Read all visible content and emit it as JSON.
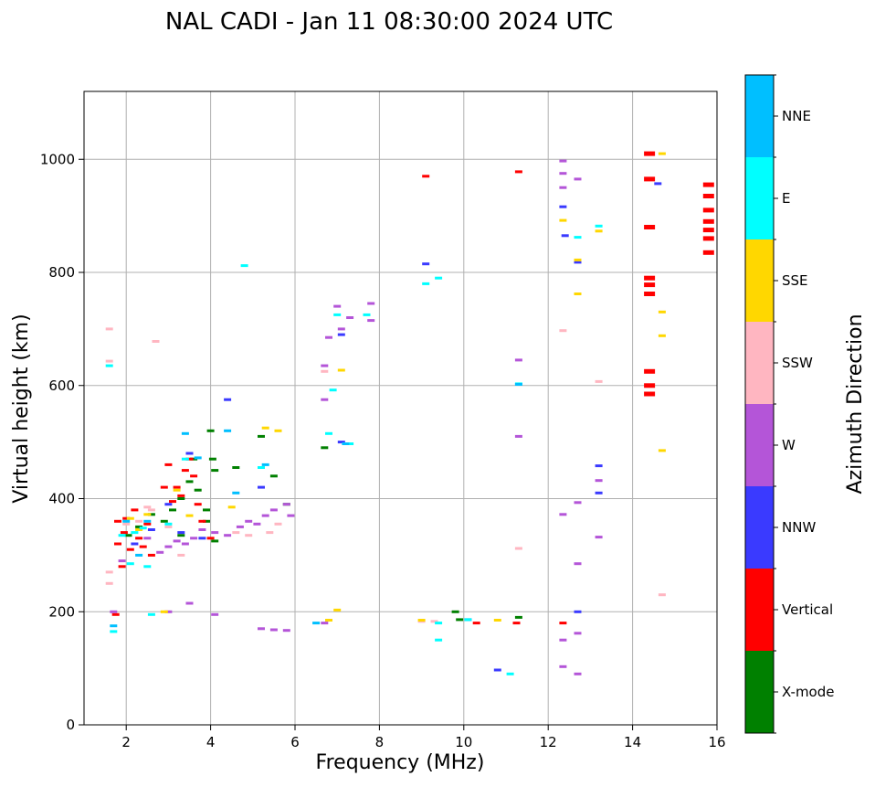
{
  "chart_data": {
    "type": "scatter",
    "title": "NAL CADI - Jan 11 08:30:00 2024 UTC",
    "xlabel": "Frequency (MHz)",
    "ylabel": "Virtual height (km)",
    "xlim": [
      1,
      16
    ],
    "ylim": [
      0,
      1120
    ],
    "xticks": [
      "2",
      "4",
      "6",
      "8",
      "10",
      "12",
      "14",
      "16"
    ],
    "yticks": [
      "0",
      "200",
      "400",
      "600",
      "800",
      "1000"
    ],
    "xtick_values": [
      2,
      4,
      6,
      8,
      10,
      12,
      14,
      16
    ],
    "ytick_values": [
      0,
      200,
      400,
      600,
      800,
      1000
    ],
    "grid": true,
    "colorbar": {
      "label": "Azimuth Direction",
      "categories": [
        {
          "name": "X-mode",
          "color": "#008000"
        },
        {
          "name": "Vertical",
          "color": "#ff0000"
        },
        {
          "name": "NNW",
          "color": "#3a3aff"
        },
        {
          "name": "W",
          "color": "#b455d8"
        },
        {
          "name": "SSW",
          "color": "#ffb6c1"
        },
        {
          "name": "SSE",
          "color": "#ffd700"
        },
        {
          "name": "E",
          "color": "#00ffff"
        },
        {
          "name": "NNE",
          "color": "#00bfff"
        }
      ]
    },
    "series": [
      {
        "name": "X-mode",
        "points": [
          [
            2.05,
            335
          ],
          [
            2.3,
            350
          ],
          [
            2.6,
            372
          ],
          [
            2.9,
            360
          ],
          [
            3.1,
            380
          ],
          [
            3.3,
            400
          ],
          [
            3.5,
            430
          ],
          [
            3.7,
            415
          ],
          [
            3.9,
            360
          ],
          [
            4.0,
            520
          ],
          [
            4.05,
            470
          ],
          [
            4.1,
            450
          ],
          [
            4.1,
            325
          ],
          [
            3.6,
            470
          ],
          [
            4.6,
            455
          ],
          [
            5.2,
            510
          ],
          [
            5.5,
            440
          ],
          [
            5.8,
            390
          ],
          [
            6.7,
            490
          ],
          [
            9.8,
            200
          ],
          [
            9.9,
            186
          ],
          [
            11.3,
            190
          ],
          [
            3.3,
            335
          ],
          [
            3.9,
            380
          ]
        ]
      },
      {
        "name": "Vertical",
        "points": [
          [
            1.75,
            195
          ],
          [
            1.8,
            320
          ],
          [
            1.8,
            360
          ],
          [
            1.9,
            280
          ],
          [
            1.95,
            340
          ],
          [
            2.0,
            365
          ],
          [
            2.1,
            310
          ],
          [
            2.2,
            380
          ],
          [
            2.3,
            330
          ],
          [
            2.4,
            315
          ],
          [
            2.5,
            355
          ],
          [
            2.6,
            300
          ],
          [
            2.9,
            420
          ],
          [
            3.0,
            460
          ],
          [
            3.1,
            395
          ],
          [
            3.2,
            420
          ],
          [
            3.3,
            405
          ],
          [
            3.4,
            450
          ],
          [
            3.5,
            470
          ],
          [
            3.6,
            440
          ],
          [
            3.7,
            390
          ],
          [
            3.8,
            360
          ],
          [
            4.0,
            330
          ],
          [
            9.1,
            970
          ],
          [
            10.3,
            180
          ],
          [
            11.25,
            180
          ],
          [
            11.3,
            978
          ],
          [
            12.35,
            180
          ],
          [
            14.4,
            1010
          ],
          [
            14.4,
            965
          ],
          [
            14.4,
            880
          ],
          [
            14.4,
            790
          ],
          [
            14.4,
            778
          ],
          [
            14.4,
            762
          ],
          [
            14.4,
            625
          ],
          [
            14.4,
            600
          ],
          [
            14.4,
            585
          ],
          [
            15.8,
            955
          ],
          [
            15.8,
            935
          ],
          [
            15.8,
            910
          ],
          [
            15.8,
            890
          ],
          [
            15.8,
            875
          ],
          [
            15.8,
            860
          ],
          [
            15.8,
            835
          ]
        ]
      },
      {
        "name": "NNW",
        "points": [
          [
            2.2,
            320
          ],
          [
            2.6,
            345
          ],
          [
            3.0,
            390
          ],
          [
            3.3,
            340
          ],
          [
            3.5,
            480
          ],
          [
            3.8,
            330
          ],
          [
            4.4,
            575
          ],
          [
            5.2,
            420
          ],
          [
            7.1,
            500
          ],
          [
            9.1,
            815
          ],
          [
            10.1,
            186
          ],
          [
            10.8,
            97
          ],
          [
            12.35,
            916
          ],
          [
            12.4,
            865
          ],
          [
            12.7,
            818
          ],
          [
            12.7,
            200
          ],
          [
            13.2,
            458
          ],
          [
            13.2,
            410
          ],
          [
            14.6,
            957
          ],
          [
            7.1,
            690
          ]
        ]
      },
      {
        "name": "W",
        "points": [
          [
            1.7,
            200
          ],
          [
            1.9,
            290
          ],
          [
            2.5,
            330
          ],
          [
            2.8,
            305
          ],
          [
            3.0,
            315
          ],
          [
            3.2,
            325
          ],
          [
            3.4,
            320
          ],
          [
            3.6,
            330
          ],
          [
            3.8,
            345
          ],
          [
            4.1,
            340
          ],
          [
            4.4,
            335
          ],
          [
            4.7,
            350
          ],
          [
            4.9,
            360
          ],
          [
            5.1,
            355
          ],
          [
            5.3,
            370
          ],
          [
            5.5,
            380
          ],
          [
            5.8,
            390
          ],
          [
            5.9,
            370
          ],
          [
            5.2,
            170
          ],
          [
            5.5,
            168
          ],
          [
            5.8,
            167
          ],
          [
            6.7,
            180
          ],
          [
            6.7,
            575
          ],
          [
            6.7,
            635
          ],
          [
            6.8,
            685
          ],
          [
            7.0,
            740
          ],
          [
            7.1,
            700
          ],
          [
            7.3,
            720
          ],
          [
            7.8,
            745
          ],
          [
            7.8,
            715
          ],
          [
            3.0,
            200
          ],
          [
            3.5,
            215
          ],
          [
            4.1,
            195
          ],
          [
            11.3,
            645
          ],
          [
            11.3,
            510
          ],
          [
            12.35,
            997
          ],
          [
            12.35,
            975
          ],
          [
            12.35,
            950
          ],
          [
            12.35,
            372
          ],
          [
            12.35,
            150
          ],
          [
            12.35,
            103
          ],
          [
            12.7,
            965
          ],
          [
            12.7,
            393
          ],
          [
            12.7,
            285
          ],
          [
            12.7,
            162
          ],
          [
            12.7,
            90
          ],
          [
            13.2,
            432
          ],
          [
            13.2,
            332
          ]
        ]
      },
      {
        "name": "SSW",
        "points": [
          [
            1.6,
            700
          ],
          [
            1.6,
            643
          ],
          [
            1.6,
            270
          ],
          [
            1.6,
            250
          ],
          [
            2.0,
            355
          ],
          [
            2.3,
            360
          ],
          [
            2.5,
            385
          ],
          [
            2.6,
            380
          ],
          [
            2.7,
            678
          ],
          [
            3.0,
            350
          ],
          [
            3.3,
            300
          ],
          [
            4.6,
            340
          ],
          [
            4.9,
            335
          ],
          [
            5.4,
            340
          ],
          [
            5.6,
            355
          ],
          [
            6.7,
            625
          ],
          [
            9.0,
            183
          ],
          [
            9.3,
            183
          ],
          [
            11.3,
            312
          ],
          [
            12.35,
            697
          ],
          [
            13.2,
            607
          ],
          [
            14.7,
            230
          ]
        ]
      },
      {
        "name": "SSE",
        "points": [
          [
            2.1,
            365
          ],
          [
            2.3,
            345
          ],
          [
            2.5,
            372
          ],
          [
            2.9,
            200
          ],
          [
            3.2,
            415
          ],
          [
            3.5,
            370
          ],
          [
            4.5,
            385
          ],
          [
            5.3,
            525
          ],
          [
            5.6,
            520
          ],
          [
            6.8,
            185
          ],
          [
            7.0,
            203
          ],
          [
            7.1,
            627
          ],
          [
            9.0,
            185
          ],
          [
            10.8,
            185
          ],
          [
            12.35,
            892
          ],
          [
            12.7,
            822
          ],
          [
            12.7,
            762
          ],
          [
            13.2,
            873
          ],
          [
            14.7,
            1010
          ],
          [
            14.7,
            730
          ],
          [
            14.7,
            688
          ],
          [
            14.7,
            485
          ]
        ]
      },
      {
        "name": "E",
        "points": [
          [
            1.6,
            635
          ],
          [
            1.7,
            165
          ],
          [
            1.9,
            335
          ],
          [
            2.1,
            285
          ],
          [
            2.2,
            340
          ],
          [
            2.4,
            348
          ],
          [
            2.5,
            280
          ],
          [
            2.6,
            195
          ],
          [
            3.0,
            355
          ],
          [
            3.4,
            470
          ],
          [
            4.8,
            812
          ],
          [
            5.2,
            455
          ],
          [
            6.8,
            515
          ],
          [
            6.9,
            592
          ],
          [
            7.0,
            725
          ],
          [
            7.3,
            497
          ],
          [
            7.7,
            725
          ],
          [
            9.1,
            780
          ],
          [
            9.4,
            790
          ],
          [
            9.4,
            180
          ],
          [
            9.4,
            150
          ],
          [
            10.1,
            186
          ],
          [
            11.1,
            90
          ],
          [
            11.3,
            603
          ],
          [
            12.7,
            862
          ],
          [
            13.2,
            882
          ]
        ]
      },
      {
        "name": "NNE",
        "points": [
          [
            1.7,
            175
          ],
          [
            2.0,
            360
          ],
          [
            2.3,
            300
          ],
          [
            2.5,
            360
          ],
          [
            3.4,
            515
          ],
          [
            3.7,
            472
          ],
          [
            4.4,
            520
          ],
          [
            4.6,
            410
          ],
          [
            5.3,
            460
          ],
          [
            6.5,
            180
          ],
          [
            7.2,
            497
          ],
          [
            11.3,
            602
          ]
        ]
      }
    ]
  }
}
